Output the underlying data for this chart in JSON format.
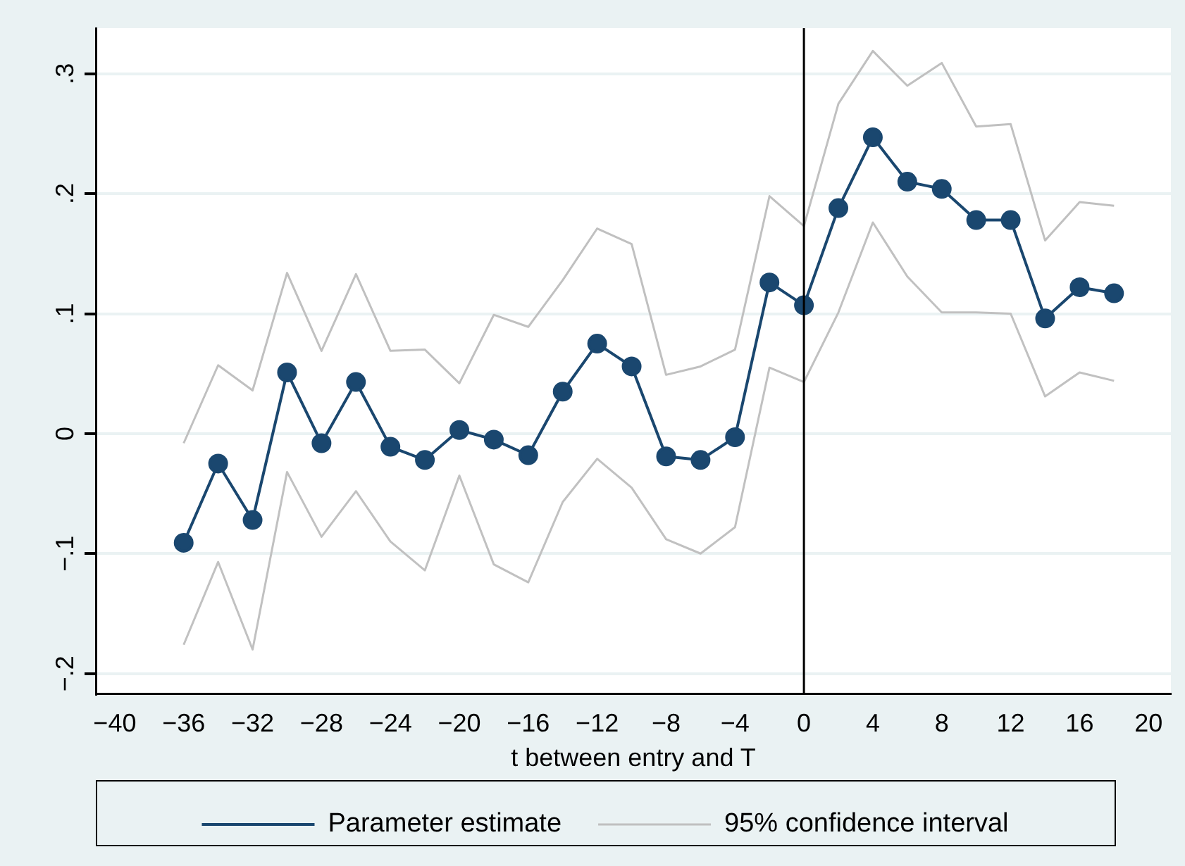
{
  "chart_data": {
    "type": "line",
    "xlabel": "t between entry and T",
    "x": [
      -36,
      -34,
      -32,
      -30,
      -28,
      -26,
      -24,
      -22,
      -20,
      -18,
      -16,
      -14,
      -12,
      -10,
      -8,
      -6,
      -4,
      -2,
      0,
      2,
      4,
      6,
      8,
      10,
      12,
      14,
      16,
      18
    ],
    "series": [
      {
        "name": "Parameter estimate",
        "color": "#1a476f",
        "marker": "circle",
        "values": [
          -0.091,
          -0.025,
          -0.072,
          0.051,
          -0.008,
          0.043,
          -0.011,
          -0.022,
          0.003,
          -0.005,
          -0.018,
          0.035,
          0.075,
          0.056,
          -0.019,
          -0.022,
          -0.003,
          0.126,
          0.107,
          0.188,
          0.247,
          0.21,
          0.204,
          0.178,
          0.178,
          0.096,
          0.122,
          0.117
        ]
      },
      {
        "name": "95% confidence interval",
        "color": "#c0c0c0",
        "marker": "none",
        "values": [
          -0.008,
          0.057,
          0.036,
          0.134,
          0.069,
          0.133,
          0.069,
          0.07,
          0.042,
          0.099,
          0.089,
          0.128,
          0.171,
          0.158,
          0.049,
          0.056,
          0.07,
          0.198,
          0.173,
          0.275,
          0.319,
          0.29,
          0.309,
          0.256,
          0.258,
          0.161,
          0.193,
          0.19
        ]
      },
      {
        "color": "#c1c1c1",
        "marker": "none",
        "values": [
          -0.176,
          -0.107,
          -0.18,
          -0.032,
          -0.086,
          -0.048,
          -0.09,
          -0.114,
          -0.035,
          -0.109,
          -0.124,
          -0.057,
          -0.021,
          -0.045,
          -0.088,
          -0.1,
          -0.078,
          0.055,
          0.043,
          0.101,
          0.176,
          0.131,
          0.101,
          0.101,
          0.1,
          0.031,
          0.051,
          0.044
        ]
      }
    ],
    "xlim": [
      -41.1,
      21.3
    ],
    "xticks": [
      {
        "value": -40,
        "label": "−40"
      },
      {
        "value": -36,
        "label": "−36"
      },
      {
        "value": -32,
        "label": "−32"
      },
      {
        "value": -28,
        "label": "−28"
      },
      {
        "value": -24,
        "label": "−24"
      },
      {
        "value": -20,
        "label": "−20"
      },
      {
        "value": -16,
        "label": "−16"
      },
      {
        "value": -12,
        "label": "−12"
      },
      {
        "value": -8,
        "label": "−8"
      },
      {
        "value": -4,
        "label": "−4"
      },
      0,
      4,
      8,
      12,
      16,
      20
    ],
    "ylim": [
      -0.217,
      0.338
    ],
    "yticks": [
      {
        "value": -0.2,
        "label": "−.2"
      },
      {
        "value": -0.1,
        "label": "−.1"
      },
      0,
      {
        "value": 0.1,
        "label": ".1"
      },
      {
        "value": 0.2,
        "label": ".2"
      },
      {
        "value": 0.3,
        "label": ".3"
      }
    ],
    "ref_lines": [
      {
        "axis": "x",
        "value": 0,
        "color": "#000000"
      }
    ],
    "grid": "y",
    "legend": "bottom"
  }
}
